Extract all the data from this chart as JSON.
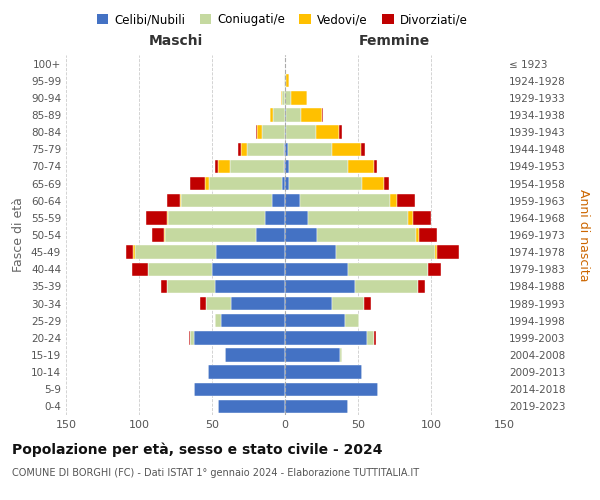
{
  "age_groups": [
    "0-4",
    "5-9",
    "10-14",
    "15-19",
    "20-24",
    "25-29",
    "30-34",
    "35-39",
    "40-44",
    "45-49",
    "50-54",
    "55-59",
    "60-64",
    "65-69",
    "70-74",
    "75-79",
    "80-84",
    "85-89",
    "90-94",
    "95-99",
    "100+"
  ],
  "birth_years": [
    "2019-2023",
    "2014-2018",
    "2009-2013",
    "2004-2008",
    "1999-2003",
    "1994-1998",
    "1989-1993",
    "1984-1988",
    "1979-1983",
    "1974-1978",
    "1969-1973",
    "1964-1968",
    "1959-1963",
    "1954-1958",
    "1949-1953",
    "1944-1948",
    "1939-1943",
    "1934-1938",
    "1929-1933",
    "1924-1928",
    "≤ 1923"
  ],
  "male": {
    "celibi": [
      46,
      62,
      53,
      41,
      62,
      44,
      37,
      48,
      50,
      47,
      20,
      14,
      9,
      2,
      1,
      1,
      0,
      0,
      0,
      0,
      0
    ],
    "coniugati": [
      0,
      0,
      0,
      0,
      3,
      4,
      17,
      33,
      44,
      56,
      62,
      66,
      62,
      50,
      37,
      25,
      16,
      8,
      2,
      1,
      0
    ],
    "vedovi": [
      0,
      0,
      0,
      0,
      0,
      0,
      0,
      0,
      0,
      1,
      1,
      1,
      1,
      3,
      8,
      4,
      3,
      2,
      1,
      0,
      0
    ],
    "divorziati": [
      0,
      0,
      0,
      0,
      1,
      0,
      4,
      4,
      11,
      5,
      8,
      14,
      9,
      10,
      2,
      2,
      1,
      0,
      0,
      0,
      0
    ]
  },
  "female": {
    "nubili": [
      43,
      64,
      53,
      38,
      56,
      41,
      32,
      48,
      43,
      35,
      22,
      16,
      10,
      3,
      3,
      2,
      1,
      1,
      0,
      0,
      0
    ],
    "coniugate": [
      0,
      0,
      0,
      1,
      5,
      10,
      22,
      43,
      55,
      68,
      68,
      68,
      62,
      50,
      40,
      30,
      20,
      10,
      4,
      1,
      0
    ],
    "vedove": [
      0,
      0,
      0,
      0,
      0,
      0,
      0,
      0,
      0,
      1,
      2,
      4,
      5,
      15,
      18,
      20,
      16,
      14,
      11,
      2,
      0
    ],
    "divorziate": [
      0,
      0,
      0,
      0,
      1,
      0,
      5,
      5,
      9,
      15,
      12,
      12,
      12,
      3,
      2,
      3,
      2,
      1,
      0,
      0,
      0
    ]
  },
  "colors": {
    "celibi": "#4472c4",
    "coniugati": "#c5d9a0",
    "vedovi": "#ffc000",
    "divorziati": "#c00000"
  },
  "title": "Popolazione per età, sesso e stato civile - 2024",
  "subtitle": "COMUNE DI BORGHI (FC) - Dati ISTAT 1° gennaio 2024 - Elaborazione TUTTITALIA.IT",
  "xlabel_left": "Maschi",
  "xlabel_right": "Femmine",
  "ylabel_left": "Fasce di età",
  "ylabel_right": "Anni di nascita",
  "xlim": 150,
  "bg_color": "#ffffff",
  "grid_color": "#cccccc",
  "anni_nascita_color": "#cc6600",
  "legend_labels": [
    "Celibi/Nubili",
    "Coniugati/e",
    "Vedovi/e",
    "Divorziati/e"
  ]
}
